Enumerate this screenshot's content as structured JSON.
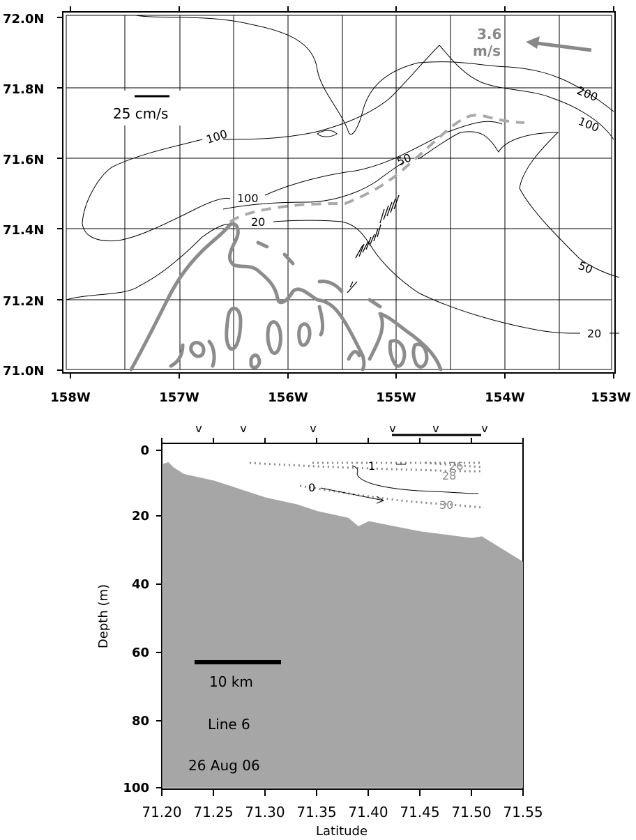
{
  "map": {
    "lat_ticks": [
      "72.0N",
      "71.8N",
      "71.6N",
      "71.4N",
      "71.2N",
      "71.0N"
    ],
    "lon_ticks": [
      "158W",
      "157W",
      "156W",
      "155W",
      "154W",
      "153W"
    ],
    "scale_label": "25 cm/s",
    "speed_value": "3.6",
    "speed_unit": "m/s",
    "isobath_labels": [
      "200",
      "100",
      "100",
      "100",
      "50",
      "50",
      "20",
      "20"
    ]
  },
  "section": {
    "y_ticks": [
      "0",
      "20",
      "40",
      "60",
      "80",
      "100"
    ],
    "x_ticks": [
      "71.20",
      "71.25",
      "71.30",
      "71.35",
      "71.40",
      "71.45",
      "71.50",
      "71.55"
    ],
    "ylabel": "Depth (m)",
    "xlabel": "Latitude",
    "distance_label": "10 km",
    "line_label": "Line 6",
    "date_label": "26 Aug 06",
    "station_marker": "v",
    "temperature_labels": [
      "1",
      "0"
    ],
    "salinity_labels": [
      "26",
      "28",
      "30"
    ]
  },
  "colors": {
    "coast": "#8c8c8c",
    "front": "#aaaaaa",
    "bottom": "#a6a6a6",
    "grid": "#000000"
  },
  "chart_data": {
    "type": "area",
    "xlabel": "Latitude",
    "ylabel": "Depth (m)",
    "xlim": [
      71.2,
      71.55
    ],
    "ylim": [
      100,
      0
    ],
    "bottom_depth": {
      "lat": [
        71.2,
        71.205,
        71.21,
        71.22,
        71.25,
        71.28,
        71.3,
        71.33,
        71.35,
        71.38,
        71.39,
        71.4,
        71.45,
        71.5,
        71.51,
        71.55
      ],
      "depth": [
        4,
        3.5,
        5,
        7,
        9,
        12,
        14,
        16,
        18,
        20,
        22.5,
        21,
        24,
        26,
        25.5,
        33
      ]
    },
    "station_lats": [
      71.235,
      71.277,
      71.346,
      71.423,
      71.465,
      71.506
    ]
  }
}
